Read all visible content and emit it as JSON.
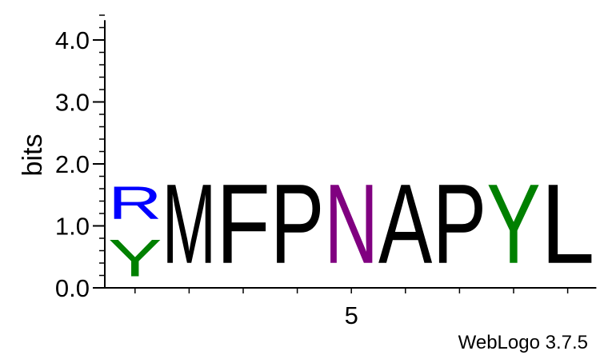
{
  "chart_data": {
    "type": "sequence-logo",
    "ylabel": "bits",
    "ylim": [
      0,
      4.32
    ],
    "yticks": [
      {
        "value": 0.0,
        "label": "0.0"
      },
      {
        "value": 1.0,
        "label": "1.0"
      },
      {
        "value": 2.0,
        "label": "2.0"
      },
      {
        "value": 3.0,
        "label": "3.0"
      },
      {
        "value": 4.0,
        "label": "4.0"
      }
    ],
    "yminor_step": 0.2,
    "xticks": [
      {
        "position": 5,
        "label": "5"
      }
    ],
    "positions": [
      {
        "index": 1,
        "letters": [
          {
            "letter": "Y",
            "bits": 0.95,
            "color": "#008000"
          },
          {
            "letter": "R",
            "bits": 0.85,
            "color": "#0000ff"
          }
        ]
      },
      {
        "index": 2,
        "letters": [
          {
            "letter": "M",
            "bits": 2.05,
            "color": "#000000"
          }
        ]
      },
      {
        "index": 3,
        "letters": [
          {
            "letter": "F",
            "bits": 2.05,
            "color": "#000000"
          }
        ]
      },
      {
        "index": 4,
        "letters": [
          {
            "letter": "P",
            "bits": 2.05,
            "color": "#000000"
          }
        ]
      },
      {
        "index": 5,
        "letters": [
          {
            "letter": "N",
            "bits": 2.05,
            "color": "#800080"
          }
        ]
      },
      {
        "index": 6,
        "letters": [
          {
            "letter": "A",
            "bits": 2.05,
            "color": "#000000"
          }
        ]
      },
      {
        "index": 7,
        "letters": [
          {
            "letter": "P",
            "bits": 2.05,
            "color": "#000000"
          }
        ]
      },
      {
        "index": 8,
        "letters": [
          {
            "letter": "Y",
            "bits": 2.05,
            "color": "#008000"
          }
        ]
      },
      {
        "index": 9,
        "letters": [
          {
            "letter": "L",
            "bits": 2.05,
            "color": "#000000"
          }
        ]
      }
    ]
  },
  "footer": {
    "credit": "WebLogo 3.7.5"
  }
}
